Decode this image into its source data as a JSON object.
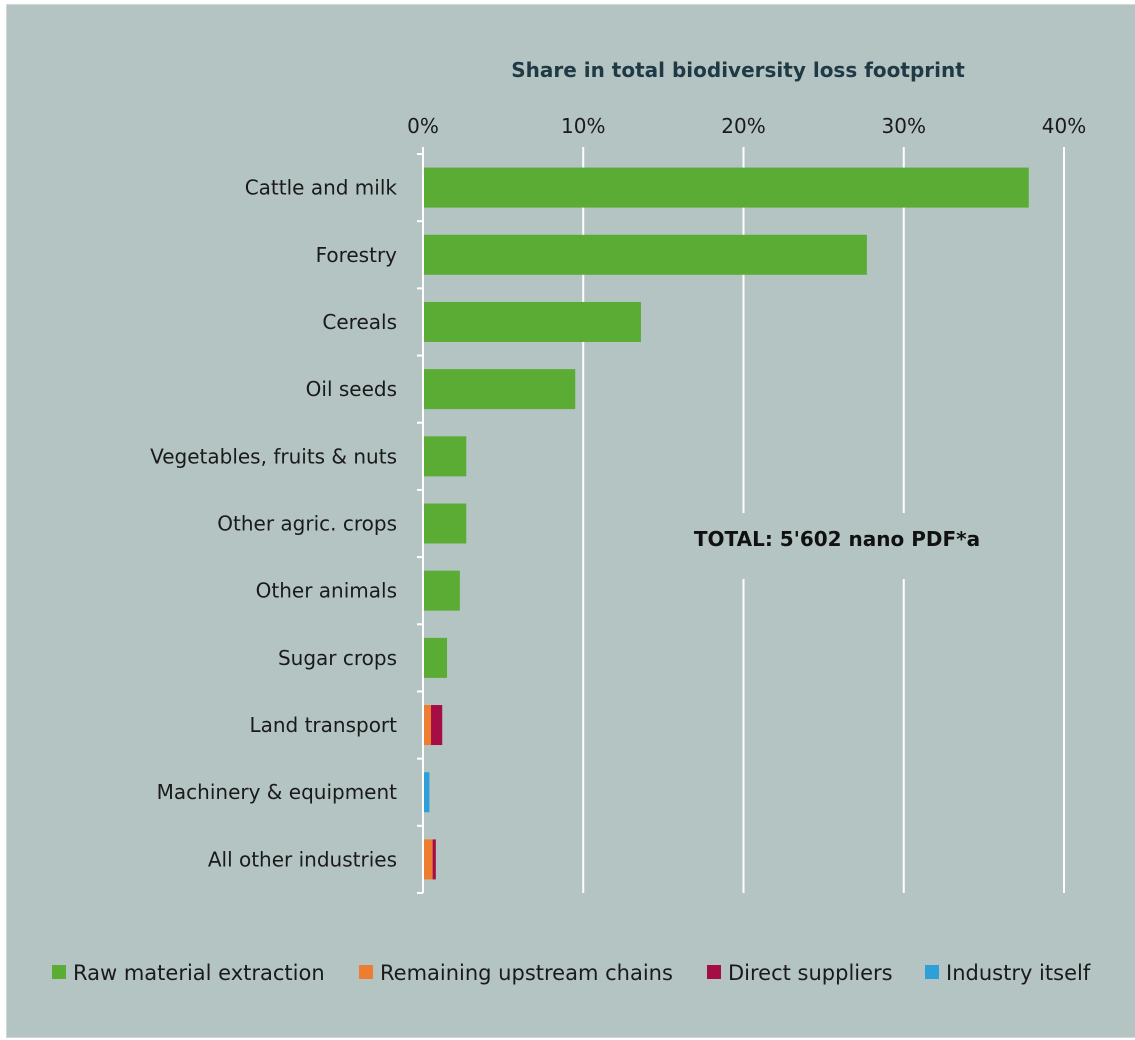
{
  "chart_data": {
    "type": "bar",
    "orientation": "horizontal",
    "stacked": true,
    "title": "Share in total biodiversity loss footprint",
    "x_axis_position": "top",
    "xlim": [
      0,
      40
    ],
    "x_ticks": [
      0,
      10,
      20,
      30,
      40
    ],
    "x_tick_labels": [
      "0%",
      "10%",
      "20%",
      "30%",
      "40%"
    ],
    "grid": true,
    "legend_position": "bottom",
    "categories": [
      "Cattle and milk",
      "Forestry",
      "Cereals",
      "Oil seeds",
      "Vegetables, fruits & nuts",
      "Other agric. crops",
      "Other animals",
      "Sugar crops",
      "Land transport",
      "Machinery & equipment",
      "All other industries"
    ],
    "series": [
      {
        "name": "Raw material extraction",
        "color": "#5aac34",
        "values": [
          37.8,
          27.7,
          13.6,
          9.5,
          2.7,
          2.7,
          2.3,
          1.5,
          0,
          0,
          0
        ]
      },
      {
        "name": "Remaining upstream chains",
        "color": "#ed7d31",
        "values": [
          0,
          0,
          0,
          0,
          0,
          0,
          0,
          0,
          0.5,
          0,
          0.6
        ]
      },
      {
        "name": "Direct suppliers",
        "color": "#a50d45",
        "values": [
          0,
          0,
          0,
          0,
          0,
          0,
          0,
          0,
          0.7,
          0,
          0.2
        ]
      },
      {
        "name": "Industry itself",
        "color": "#2e9fd8",
        "values": [
          0,
          0,
          0,
          0,
          0,
          0,
          0,
          0,
          0,
          0.4,
          0
        ]
      }
    ],
    "annotation": "TOTAL: 5'602 nano PDF*a"
  }
}
